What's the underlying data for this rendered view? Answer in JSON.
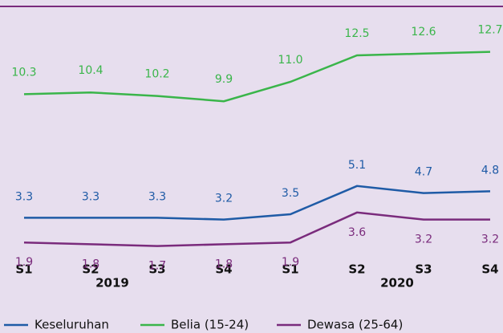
{
  "chart_data": {
    "type": "line",
    "categories": [
      "S1",
      "S2",
      "S3",
      "S4",
      "S1",
      "S2",
      "S3",
      "S4"
    ],
    "groups": [
      "2019",
      "2020"
    ],
    "series": [
      {
        "name": "Keseluruhan",
        "color": "#1f5ba6",
        "values": [
          3.3,
          3.3,
          3.3,
          3.2,
          3.5,
          5.1,
          4.7,
          4.8
        ],
        "value_labels": [
          "3.3",
          "3.3",
          "3.3",
          "3.2",
          "3.5",
          "5.1",
          "4.7",
          "4.8"
        ]
      },
      {
        "name": "Belia (15-24)",
        "color": "#3ab54a",
        "values": [
          10.3,
          10.4,
          10.2,
          9.9,
          11.0,
          12.5,
          12.6,
          12.7
        ],
        "value_labels": [
          "10.3",
          "10.4",
          "10.2",
          "9.9",
          "11.0",
          "12.5",
          "12.6",
          "12.7"
        ]
      },
      {
        "name": "Dewasa (25-64)",
        "color": "#7a2b7c",
        "values": [
          1.9,
          1.8,
          1.7,
          1.8,
          1.9,
          3.6,
          3.2,
          3.2
        ],
        "value_labels": [
          "1.9",
          "1.8",
          "1.7",
          "1.8",
          "1.9",
          "3.6",
          "3.2",
          "3.2"
        ]
      }
    ],
    "legend": "bottom"
  }
}
